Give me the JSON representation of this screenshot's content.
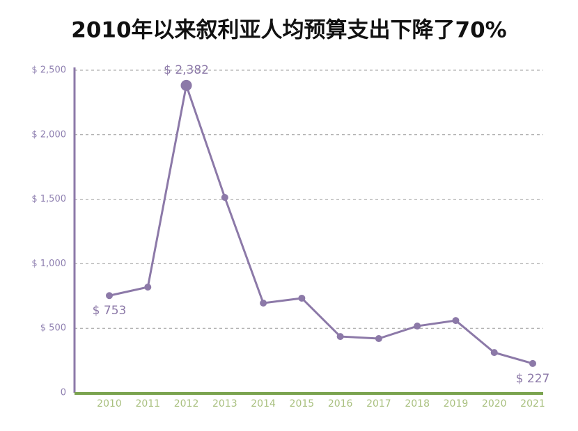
{
  "chart_data": {
    "type": "line",
    "title": "2010年以来叙利亚人均预算支出下降了70%",
    "categories": [
      "2010",
      "2011",
      "2012",
      "2013",
      "2014",
      "2015",
      "2016",
      "2017",
      "2018",
      "2019",
      "2020",
      "2021"
    ],
    "series": [
      {
        "color": "#8c79a8",
        "values": [
          753,
          819,
          2382,
          1514,
          695,
          733,
          436,
          420,
          517,
          560,
          312,
          227
        ],
        "value_labels": [
          "$ 753",
          null,
          "$ 2,382",
          null,
          null,
          null,
          null,
          null,
          null,
          null,
          null,
          "$ 227"
        ]
      }
    ],
    "ylim": [
      0,
      2500
    ],
    "yticks": [
      0,
      {
        "value": 500,
        "label": "$ 500"
      },
      {
        "value": 1000,
        "label": "$ 1,000"
      },
      {
        "value": 1500,
        "label": "$ 1,500"
      },
      {
        "value": 2000,
        "label": "$ 2,000"
      },
      {
        "value": 2500,
        "label": "$ 2,500"
      }
    ],
    "grid": true
  }
}
